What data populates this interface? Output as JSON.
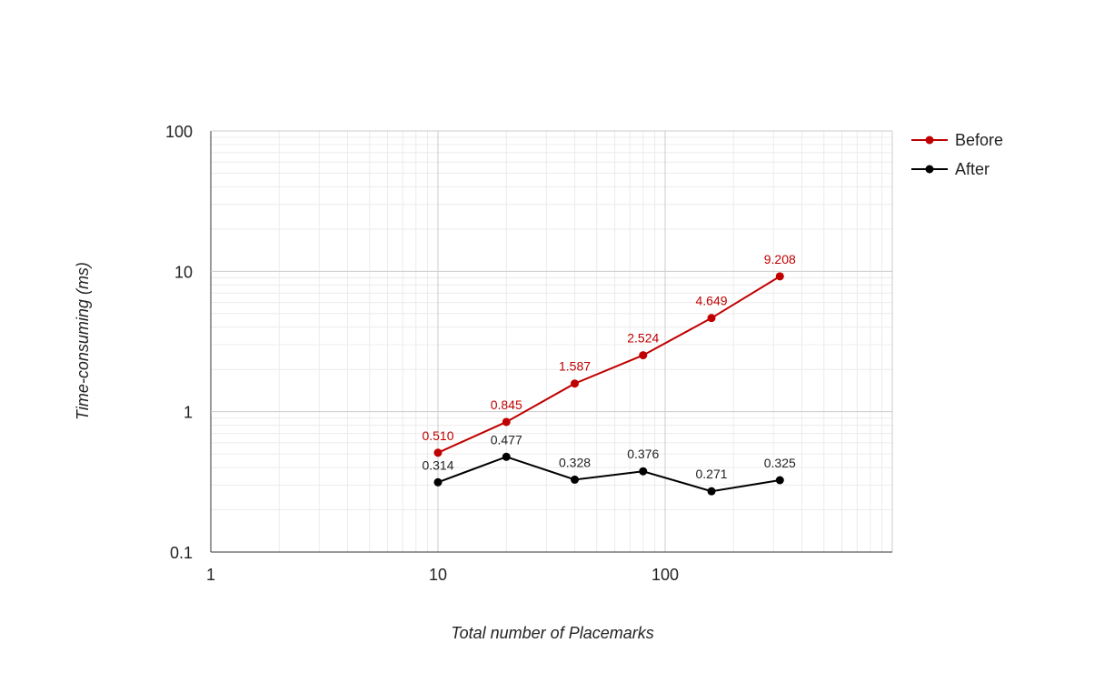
{
  "chart_data": {
    "type": "line",
    "title": "",
    "xlabel": "Total number of Placemarks",
    "ylabel": "Time-consuming (ms)",
    "xscale": "log",
    "yscale": "log",
    "xlim": [
      1,
      1000
    ],
    "ylim": [
      0.1,
      100
    ],
    "x_ticks": [
      {
        "value": 1,
        "label": "1"
      },
      {
        "value": 10,
        "label": "10"
      },
      {
        "value": 100,
        "label": "100"
      }
    ],
    "y_ticks": [
      {
        "value": 0.1,
        "label": "0.1"
      },
      {
        "value": 1,
        "label": "1"
      },
      {
        "value": 10,
        "label": "10"
      },
      {
        "value": 100,
        "label": "100"
      }
    ],
    "grid": true,
    "legend_position": "right",
    "x": [
      10,
      20,
      40,
      80,
      160,
      320
    ],
    "series": [
      {
        "name": "Before",
        "color": "#c00000",
        "values": [
          0.51,
          0.845,
          1.587,
          2.524,
          4.649,
          9.208
        ],
        "labels": [
          "0.510",
          "0.845",
          "1.587",
          "2.524",
          "4.649",
          "9.208"
        ]
      },
      {
        "name": "After",
        "color": "#000000",
        "values": [
          0.314,
          0.477,
          0.328,
          0.376,
          0.271,
          0.325
        ],
        "labels": [
          "0.314",
          "0.477",
          "0.328",
          "0.376",
          "0.271",
          "0.325"
        ]
      }
    ]
  }
}
